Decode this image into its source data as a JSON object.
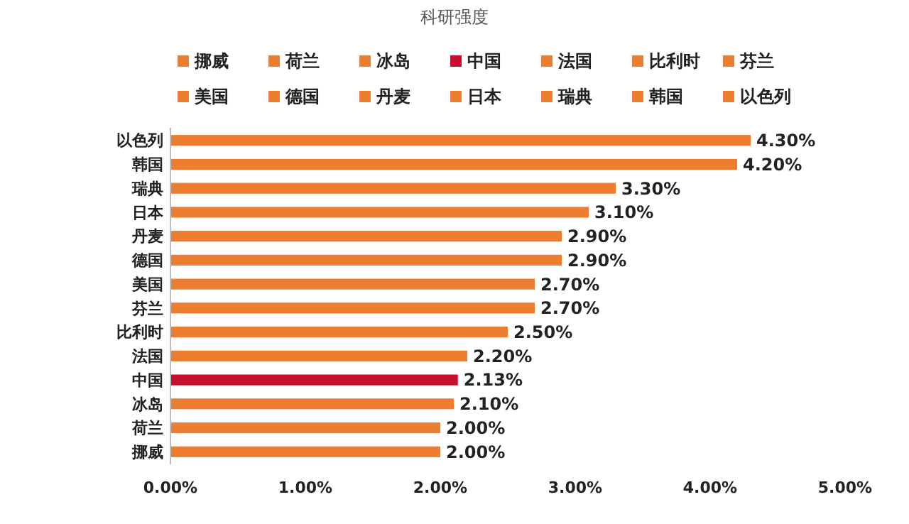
{
  "chart_data": {
    "type": "bar",
    "orientation": "horizontal",
    "title": "科研强度",
    "legend": "top",
    "categories": [
      "以色列",
      "韩国",
      "瑞典",
      "日本",
      "丹麦",
      "德国",
      "美国",
      "芬兰",
      "比利时",
      "法国",
      "中国",
      "冰岛",
      "荷兰",
      "挪威"
    ],
    "series": [
      {
        "name": "挪威",
        "color": "#ed7d31",
        "values": [
          null,
          null,
          null,
          null,
          null,
          null,
          null,
          null,
          null,
          null,
          null,
          null,
          null,
          2.0
        ],
        "value_labels": [
          null,
          null,
          null,
          null,
          null,
          null,
          null,
          null,
          null,
          null,
          null,
          null,
          null,
          "2.00%"
        ]
      },
      {
        "name": "荷兰",
        "color": "#ed7d31",
        "values": [
          null,
          null,
          null,
          null,
          null,
          null,
          null,
          null,
          null,
          null,
          null,
          null,
          2.0,
          null
        ],
        "value_labels": [
          null,
          null,
          null,
          null,
          null,
          null,
          null,
          null,
          null,
          null,
          null,
          null,
          "2.00%",
          null
        ]
      },
      {
        "name": "冰岛",
        "color": "#ed7d31",
        "values": [
          null,
          null,
          null,
          null,
          null,
          null,
          null,
          null,
          null,
          null,
          null,
          2.1,
          null,
          null
        ],
        "value_labels": [
          null,
          null,
          null,
          null,
          null,
          null,
          null,
          null,
          null,
          null,
          null,
          "2.10%",
          null,
          null
        ]
      },
      {
        "name": "中国",
        "color": "#c8102e",
        "values": [
          null,
          null,
          null,
          null,
          null,
          null,
          null,
          null,
          null,
          null,
          2.13,
          null,
          null,
          null
        ],
        "value_labels": [
          null,
          null,
          null,
          null,
          null,
          null,
          null,
          null,
          null,
          null,
          "2.13%",
          null,
          null,
          null
        ]
      },
      {
        "name": "法国",
        "color": "#ed7d31",
        "values": [
          null,
          null,
          null,
          null,
          null,
          null,
          null,
          null,
          null,
          2.2,
          null,
          null,
          null,
          null
        ],
        "value_labels": [
          null,
          null,
          null,
          null,
          null,
          null,
          null,
          null,
          null,
          "2.20%",
          null,
          null,
          null,
          null
        ]
      },
      {
        "name": "比利时",
        "color": "#ed7d31",
        "values": [
          null,
          null,
          null,
          null,
          null,
          null,
          null,
          null,
          2.5,
          null,
          null,
          null,
          null,
          null
        ],
        "value_labels": [
          null,
          null,
          null,
          null,
          null,
          null,
          null,
          null,
          "2.50%",
          null,
          null,
          null,
          null,
          null
        ]
      },
      {
        "name": "芬兰",
        "color": "#ed7d31",
        "values": [
          null,
          null,
          null,
          null,
          null,
          null,
          null,
          2.7,
          null,
          null,
          null,
          null,
          null,
          null
        ],
        "value_labels": [
          null,
          null,
          null,
          null,
          null,
          null,
          null,
          "2.70%",
          null,
          null,
          null,
          null,
          null,
          null
        ]
      },
      {
        "name": "美国",
        "color": "#ed7d31",
        "values": [
          null,
          null,
          null,
          null,
          null,
          null,
          2.7,
          null,
          null,
          null,
          null,
          null,
          null,
          null
        ],
        "value_labels": [
          null,
          null,
          null,
          null,
          null,
          null,
          "2.70%",
          null,
          null,
          null,
          null,
          null,
          null,
          null
        ]
      },
      {
        "name": "德国",
        "color": "#ed7d31",
        "values": [
          null,
          null,
          null,
          null,
          null,
          2.9,
          null,
          null,
          null,
          null,
          null,
          null,
          null,
          null
        ],
        "value_labels": [
          null,
          null,
          null,
          null,
          null,
          "2.90%",
          null,
          null,
          null,
          null,
          null,
          null,
          null,
          null
        ]
      },
      {
        "name": "丹麦",
        "color": "#ed7d31",
        "values": [
          null,
          null,
          null,
          null,
          2.9,
          null,
          null,
          null,
          null,
          null,
          null,
          null,
          null,
          null
        ],
        "value_labels": [
          null,
          null,
          null,
          null,
          "2.90%",
          null,
          null,
          null,
          null,
          null,
          null,
          null,
          null,
          null
        ]
      },
      {
        "name": "日本",
        "color": "#ed7d31",
        "values": [
          null,
          null,
          null,
          3.1,
          null,
          null,
          null,
          null,
          null,
          null,
          null,
          null,
          null,
          null
        ],
        "value_labels": [
          null,
          null,
          null,
          "3.10%",
          null,
          null,
          null,
          null,
          null,
          null,
          null,
          null,
          null,
          null
        ]
      },
      {
        "name": "瑞典",
        "color": "#ed7d31",
        "values": [
          null,
          null,
          3.3,
          null,
          null,
          null,
          null,
          null,
          null,
          null,
          null,
          null,
          null,
          null
        ],
        "value_labels": [
          null,
          null,
          "3.30%",
          null,
          null,
          null,
          null,
          null,
          null,
          null,
          null,
          null,
          null,
          null
        ]
      },
      {
        "name": "韩国",
        "color": "#ed7d31",
        "values": [
          null,
          4.2,
          null,
          null,
          null,
          null,
          null,
          null,
          null,
          null,
          null,
          null,
          null,
          null
        ],
        "value_labels": [
          null,
          "4.20%",
          null,
          null,
          null,
          null,
          null,
          null,
          null,
          null,
          null,
          null,
          null,
          null
        ]
      },
      {
        "name": "以色列",
        "color": "#ed7d31",
        "values": [
          4.3,
          null,
          null,
          null,
          null,
          null,
          null,
          null,
          null,
          null,
          null,
          null,
          null,
          null
        ],
        "value_labels": [
          "4.30%",
          null,
          null,
          null,
          null,
          null,
          null,
          null,
          null,
          null,
          null,
          null,
          null,
          null
        ]
      }
    ],
    "xlim": [
      0,
      5
    ],
    "xticks": [
      {
        "value": 0,
        "label": "0.00%"
      },
      {
        "value": 1,
        "label": "1.00%"
      },
      {
        "value": 2,
        "label": "2.00%"
      },
      {
        "value": 3,
        "label": "3.00%"
      },
      {
        "value": 4,
        "label": "4.00%"
      },
      {
        "value": 5,
        "label": "5.00%"
      }
    ]
  }
}
